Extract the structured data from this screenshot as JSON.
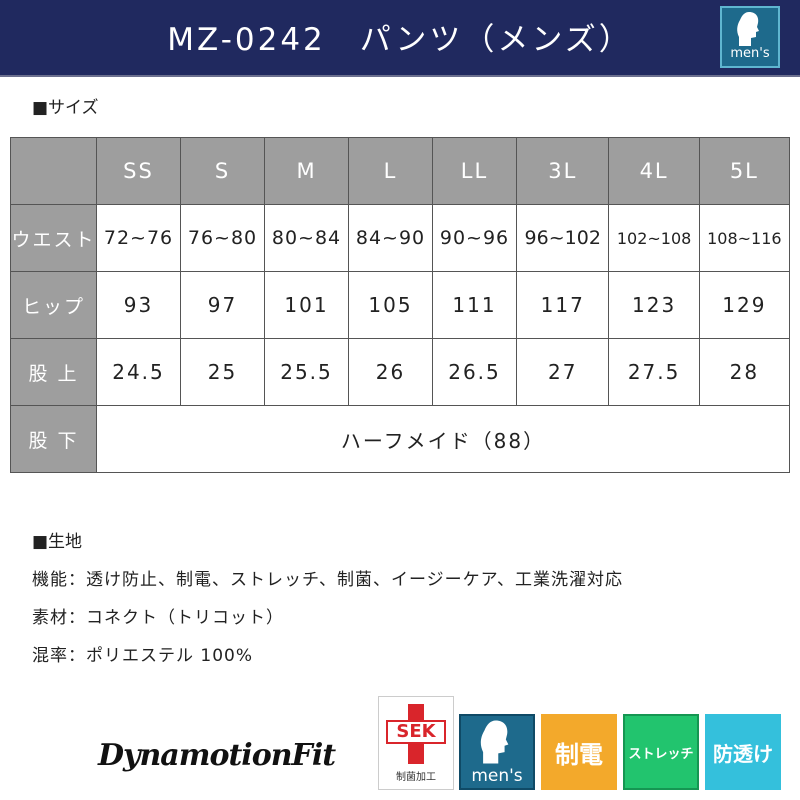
{
  "header": {
    "title": "MZ-0242　パンツ（メンズ）",
    "badge_label": "men's"
  },
  "size_section": {
    "heading": "■サイズ"
  },
  "size_table": {
    "columns": [
      "SS",
      "S",
      "M",
      "L",
      "LL",
      "3L",
      "4L",
      "5L"
    ],
    "rows": [
      {
        "label": "ウエスト",
        "values": [
          "72~76",
          "76~80",
          "80~84",
          "84~90",
          "90~96",
          "96~102",
          "102~108",
          "108~116"
        ]
      },
      {
        "label": "ヒップ",
        "values": [
          "93",
          "97",
          "101",
          "105",
          "111",
          "117",
          "123",
          "129"
        ]
      },
      {
        "label": "股 上",
        "values": [
          "24.5",
          "25",
          "25.5",
          "26",
          "26.5",
          "27",
          "27.5",
          "28"
        ]
      },
      {
        "label": "股 下",
        "merged_value": "ハーフメイド（88）"
      }
    ]
  },
  "fabric_section": {
    "heading": "■生地",
    "lines": [
      "機能：透け防止、制電、ストレッチ、制菌、イージーケア、工業洗濯対応",
      "素材：コネクト（トリコット）",
      "混率：ポリエステル 100%"
    ]
  },
  "brand": {
    "logo_text": "DynamotionFit"
  },
  "badges": [
    {
      "icon": "sek-cross-icon",
      "text": "SEK",
      "caption": "制菌加工",
      "color": "#d9252b"
    },
    {
      "icon": "mens-silhouette-icon",
      "text": "men's",
      "color": "#1e6a8c"
    },
    {
      "text": "制電",
      "color": "#f3a92b"
    },
    {
      "text": "ストレッチ",
      "color": "#22c46e"
    },
    {
      "text": "防透け",
      "color": "#34c0dc"
    }
  ]
}
